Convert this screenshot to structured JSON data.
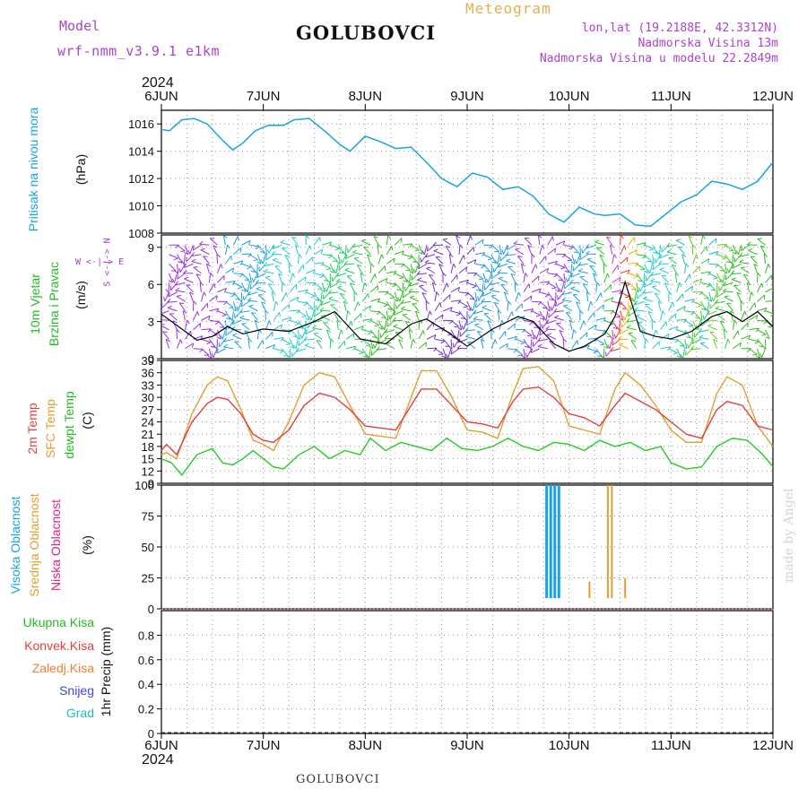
{
  "header": {
    "model_label": "Model",
    "model_name": "wrf-nmm_v3.9.1 e1km",
    "title": "GOLUBOVCI",
    "meteogram_label": "Meteogram",
    "lonlat": "lon,lat (19.2188E, 42.3312N)",
    "elevation": "Nadmorska Visina 13m",
    "model_elevation": "Nadmorska Visina u modelu 22.2849m"
  },
  "footer": {
    "station": "GOLUBOVCI",
    "credit": "made by Angel"
  },
  "axis": {
    "year_top": "2024",
    "year_bottom": "2024",
    "days": [
      "6JUN",
      "7JUN",
      "8JUN",
      "9JUN",
      "10JUN",
      "11JUN",
      "12JUN"
    ]
  },
  "panels": {
    "pressure": {
      "label": "Pritisak na nivou mora",
      "unit": "(hPa)"
    },
    "wind": {
      "label1": "10m Vjetar",
      "label2": "Brzina i Pravac",
      "unit": "(m/s)",
      "compass_h": "W <-|-> E",
      "compass_v": "S <-|-> N"
    },
    "temp": {
      "label1": "2m Temp",
      "label2": "SFC Temp",
      "label3": "dewpt Temp",
      "unit": "(C)"
    },
    "cloud": {
      "label1": "Visoka Oblacnost",
      "label2": "Srednja Oblacnost",
      "label3": "Niska Oblacnost",
      "unit": "(%)"
    },
    "precip": {
      "legend": [
        "Ukupna Kisa",
        "Konvek.Kisa",
        "Zaledj.Kisa",
        "Snijeg",
        "Grad"
      ],
      "unit": "1hr Precip (mm)"
    }
  },
  "colors": {
    "pressure": "#1aa3e0",
    "wind_label": "#22bb22",
    "compass": "#aa44cc",
    "t2m": "#e04040",
    "sfc": "#e0a030",
    "dewpt": "#22cc22",
    "cloud_high": "#1aa3e0",
    "cloud_mid": "#e0a030",
    "cloud_low": "#dd2288",
    "precip_total": "#22bb22",
    "precip_conv": "#e04040",
    "precip_frz": "#f08030",
    "precip_snow": "#4444dd",
    "precip_hail": "#22bbbb",
    "header_purple": "#aa44cc",
    "meteogram": "#e0b050"
  },
  "chart_data": [
    {
      "type": "line",
      "name": "pressure",
      "x_unit": "days since 6JUN 00UTC",
      "ylim": [
        1008,
        1017
      ],
      "yticks": [
        1008,
        1010,
        1012,
        1014,
        1016
      ],
      "grid": true,
      "series": [
        {
          "name": "Pritisak na nivou mora",
          "x": [
            0,
            0.08,
            0.2,
            0.32,
            0.45,
            0.6,
            0.7,
            0.8,
            0.92,
            1.05,
            1.2,
            1.3,
            1.45,
            1.6,
            1.75,
            1.85,
            2.0,
            2.15,
            2.3,
            2.45,
            2.6,
            2.75,
            2.9,
            3.05,
            3.2,
            3.35,
            3.5,
            3.65,
            3.8,
            3.95,
            4.1,
            4.25,
            4.35,
            4.5,
            4.65,
            4.8,
            4.95,
            5.1,
            5.25,
            5.4,
            5.55,
            5.7,
            5.85,
            6.0
          ],
          "values": [
            1015.6,
            1015.5,
            1016.3,
            1016.4,
            1016.0,
            1014.8,
            1014.1,
            1014.6,
            1015.5,
            1015.9,
            1015.9,
            1016.3,
            1016.4,
            1015.5,
            1014.5,
            1014.0,
            1015.1,
            1014.7,
            1014.2,
            1014.3,
            1013.2,
            1012.0,
            1011.4,
            1012.4,
            1012.1,
            1011.2,
            1011.4,
            1010.7,
            1009.4,
            1008.8,
            1009.9,
            1009.4,
            1009.3,
            1009.4,
            1008.6,
            1008.5,
            1009.4,
            1010.3,
            1010.8,
            1011.8,
            1011.6,
            1011.2,
            1011.8,
            1013.2
          ]
        }
      ]
    },
    {
      "type": "line",
      "name": "wind",
      "x_unit": "days since 6JUN 00UTC",
      "ylim": [
        0,
        10
      ],
      "yticks": [
        0,
        3,
        6,
        9
      ],
      "grid": true,
      "series": [
        {
          "name": "wind speed",
          "x": [
            0,
            0.2,
            0.35,
            0.5,
            0.65,
            0.8,
            1.0,
            1.25,
            1.5,
            1.7,
            1.95,
            2.2,
            2.45,
            2.6,
            2.8,
            3.0,
            3.25,
            3.5,
            3.65,
            3.85,
            4.0,
            4.15,
            4.35,
            4.45,
            4.55,
            4.7,
            4.85,
            5.0,
            5.2,
            5.4,
            5.55,
            5.7,
            5.85,
            6.0
          ],
          "values": [
            3.6,
            2.4,
            1.5,
            1.8,
            2.6,
            2.0,
            2.4,
            2.2,
            3.0,
            3.8,
            1.6,
            1.2,
            2.8,
            3.2,
            2.2,
            1.0,
            2.4,
            3.4,
            3.0,
            1.2,
            0.6,
            1.0,
            2.0,
            3.4,
            6.2,
            2.2,
            1.8,
            1.6,
            2.2,
            3.4,
            3.8,
            3.0,
            3.8,
            2.6
          ]
        }
      ]
    },
    {
      "type": "line",
      "name": "temperature",
      "x_unit": "days since 6JUN 00UTC",
      "ylim": [
        9,
        39
      ],
      "yticks": [
        9,
        12,
        15,
        18,
        21,
        24,
        27,
        30,
        33,
        36,
        39
      ],
      "grid": true,
      "series": [
        {
          "name": "2m Temp",
          "x": [
            0,
            0.05,
            0.15,
            0.3,
            0.45,
            0.55,
            0.65,
            0.78,
            0.9,
            1.0,
            1.1,
            1.25,
            1.4,
            1.55,
            1.7,
            1.85,
            2.0,
            2.15,
            2.3,
            2.45,
            2.55,
            2.7,
            2.85,
            3.0,
            3.15,
            3.3,
            3.45,
            3.55,
            3.7,
            3.85,
            4.0,
            4.15,
            4.3,
            4.45,
            4.55,
            4.7,
            4.85,
            5.0,
            5.15,
            5.3,
            5.45,
            5.55,
            5.7,
            5.85,
            6.0
          ],
          "values": [
            17,
            18.5,
            16,
            24,
            28.5,
            30,
            29.5,
            26,
            21,
            19.5,
            19,
            22,
            28,
            31,
            30,
            27,
            23,
            22.5,
            22,
            28,
            32,
            32,
            28,
            24,
            23.5,
            22.5,
            29,
            32,
            32.5,
            30,
            26,
            25,
            23,
            28,
            31,
            29,
            27,
            24,
            21,
            20,
            27,
            29,
            28,
            23,
            22
          ]
        },
        {
          "name": "SFC Temp",
          "x": [
            0,
            0.05,
            0.15,
            0.3,
            0.45,
            0.55,
            0.65,
            0.78,
            0.9,
            1.0,
            1.1,
            1.25,
            1.4,
            1.55,
            1.7,
            1.85,
            2.0,
            2.15,
            2.3,
            2.45,
            2.55,
            2.7,
            2.85,
            3.0,
            3.15,
            3.3,
            3.45,
            3.55,
            3.7,
            3.85,
            4.0,
            4.15,
            4.3,
            4.45,
            4.55,
            4.7,
            4.85,
            5.0,
            5.15,
            5.3,
            5.45,
            5.55,
            5.7,
            5.85,
            6.0
          ],
          "values": [
            16,
            16.5,
            15,
            26,
            33,
            35,
            34,
            27,
            19.5,
            18.5,
            17,
            24,
            33,
            36,
            35,
            28,
            21,
            20.5,
            20,
            30,
            36.5,
            36.5,
            30,
            22,
            21.5,
            20,
            31,
            37,
            37.5,
            34,
            23,
            22,
            21,
            32,
            36,
            33,
            28,
            22,
            19,
            19,
            31,
            35,
            33,
            23,
            18
          ]
        },
        {
          "name": "dewpt Temp",
          "x": [
            0,
            0.1,
            0.2,
            0.35,
            0.5,
            0.6,
            0.7,
            0.8,
            0.9,
            1.0,
            1.1,
            1.2,
            1.35,
            1.5,
            1.65,
            1.8,
            1.95,
            2.05,
            2.2,
            2.35,
            2.5,
            2.65,
            2.8,
            2.95,
            3.1,
            3.25,
            3.4,
            3.55,
            3.7,
            3.85,
            4.0,
            4.15,
            4.3,
            4.45,
            4.6,
            4.75,
            4.9,
            5.0,
            5.15,
            5.3,
            5.45,
            5.6,
            5.75,
            5.9,
            6.0
          ],
          "values": [
            15,
            14,
            11,
            16,
            17.5,
            14,
            13.5,
            15,
            17,
            15,
            13,
            12.5,
            16,
            18,
            15,
            17,
            16,
            20,
            17,
            19,
            18,
            17,
            20,
            17.5,
            17,
            18,
            20,
            18,
            17,
            19,
            18.5,
            17,
            19.5,
            18,
            19,
            17,
            18,
            14,
            12.5,
            13,
            18,
            20,
            19.5,
            16,
            13
          ]
        }
      ]
    },
    {
      "type": "bar",
      "name": "cloud_cover",
      "x_unit": "days since 6JUN 00UTC",
      "ylim": [
        0,
        100
      ],
      "yticks": [
        0,
        25,
        50,
        75,
        100
      ],
      "grid": true,
      "series": [
        {
          "name": "Visoka Oblacnost",
          "x": [
            3.78,
            3.82,
            3.86,
            3.9
          ],
          "values": [
            100,
            100,
            100,
            100
          ]
        },
        {
          "name": "Srednja Oblacnost",
          "x": [
            4.2,
            4.38,
            4.42,
            4.55,
            4.58
          ],
          "values": [
            22,
            100,
            100,
            25,
            8
          ]
        },
        {
          "name": "Niska Oblacnost",
          "x": [
            0.58
          ],
          "values": [
            7
          ]
        }
      ]
    },
    {
      "type": "bar",
      "name": "precipitation",
      "x_unit": "days since 6JUN 00UTC",
      "ylim": [
        0,
        1
      ],
      "yticks": [
        0,
        0.2,
        0.4,
        0.6,
        0.8
      ],
      "grid": true,
      "series": [
        {
          "name": "Ukupna Kisa",
          "x": [],
          "values": []
        },
        {
          "name": "Konvek.Kisa",
          "x": [],
          "values": []
        },
        {
          "name": "Zaledj.Kisa",
          "x": [],
          "values": []
        },
        {
          "name": "Snijeg",
          "x": [],
          "values": []
        },
        {
          "name": "Grad",
          "x": [],
          "values": []
        }
      ]
    }
  ]
}
